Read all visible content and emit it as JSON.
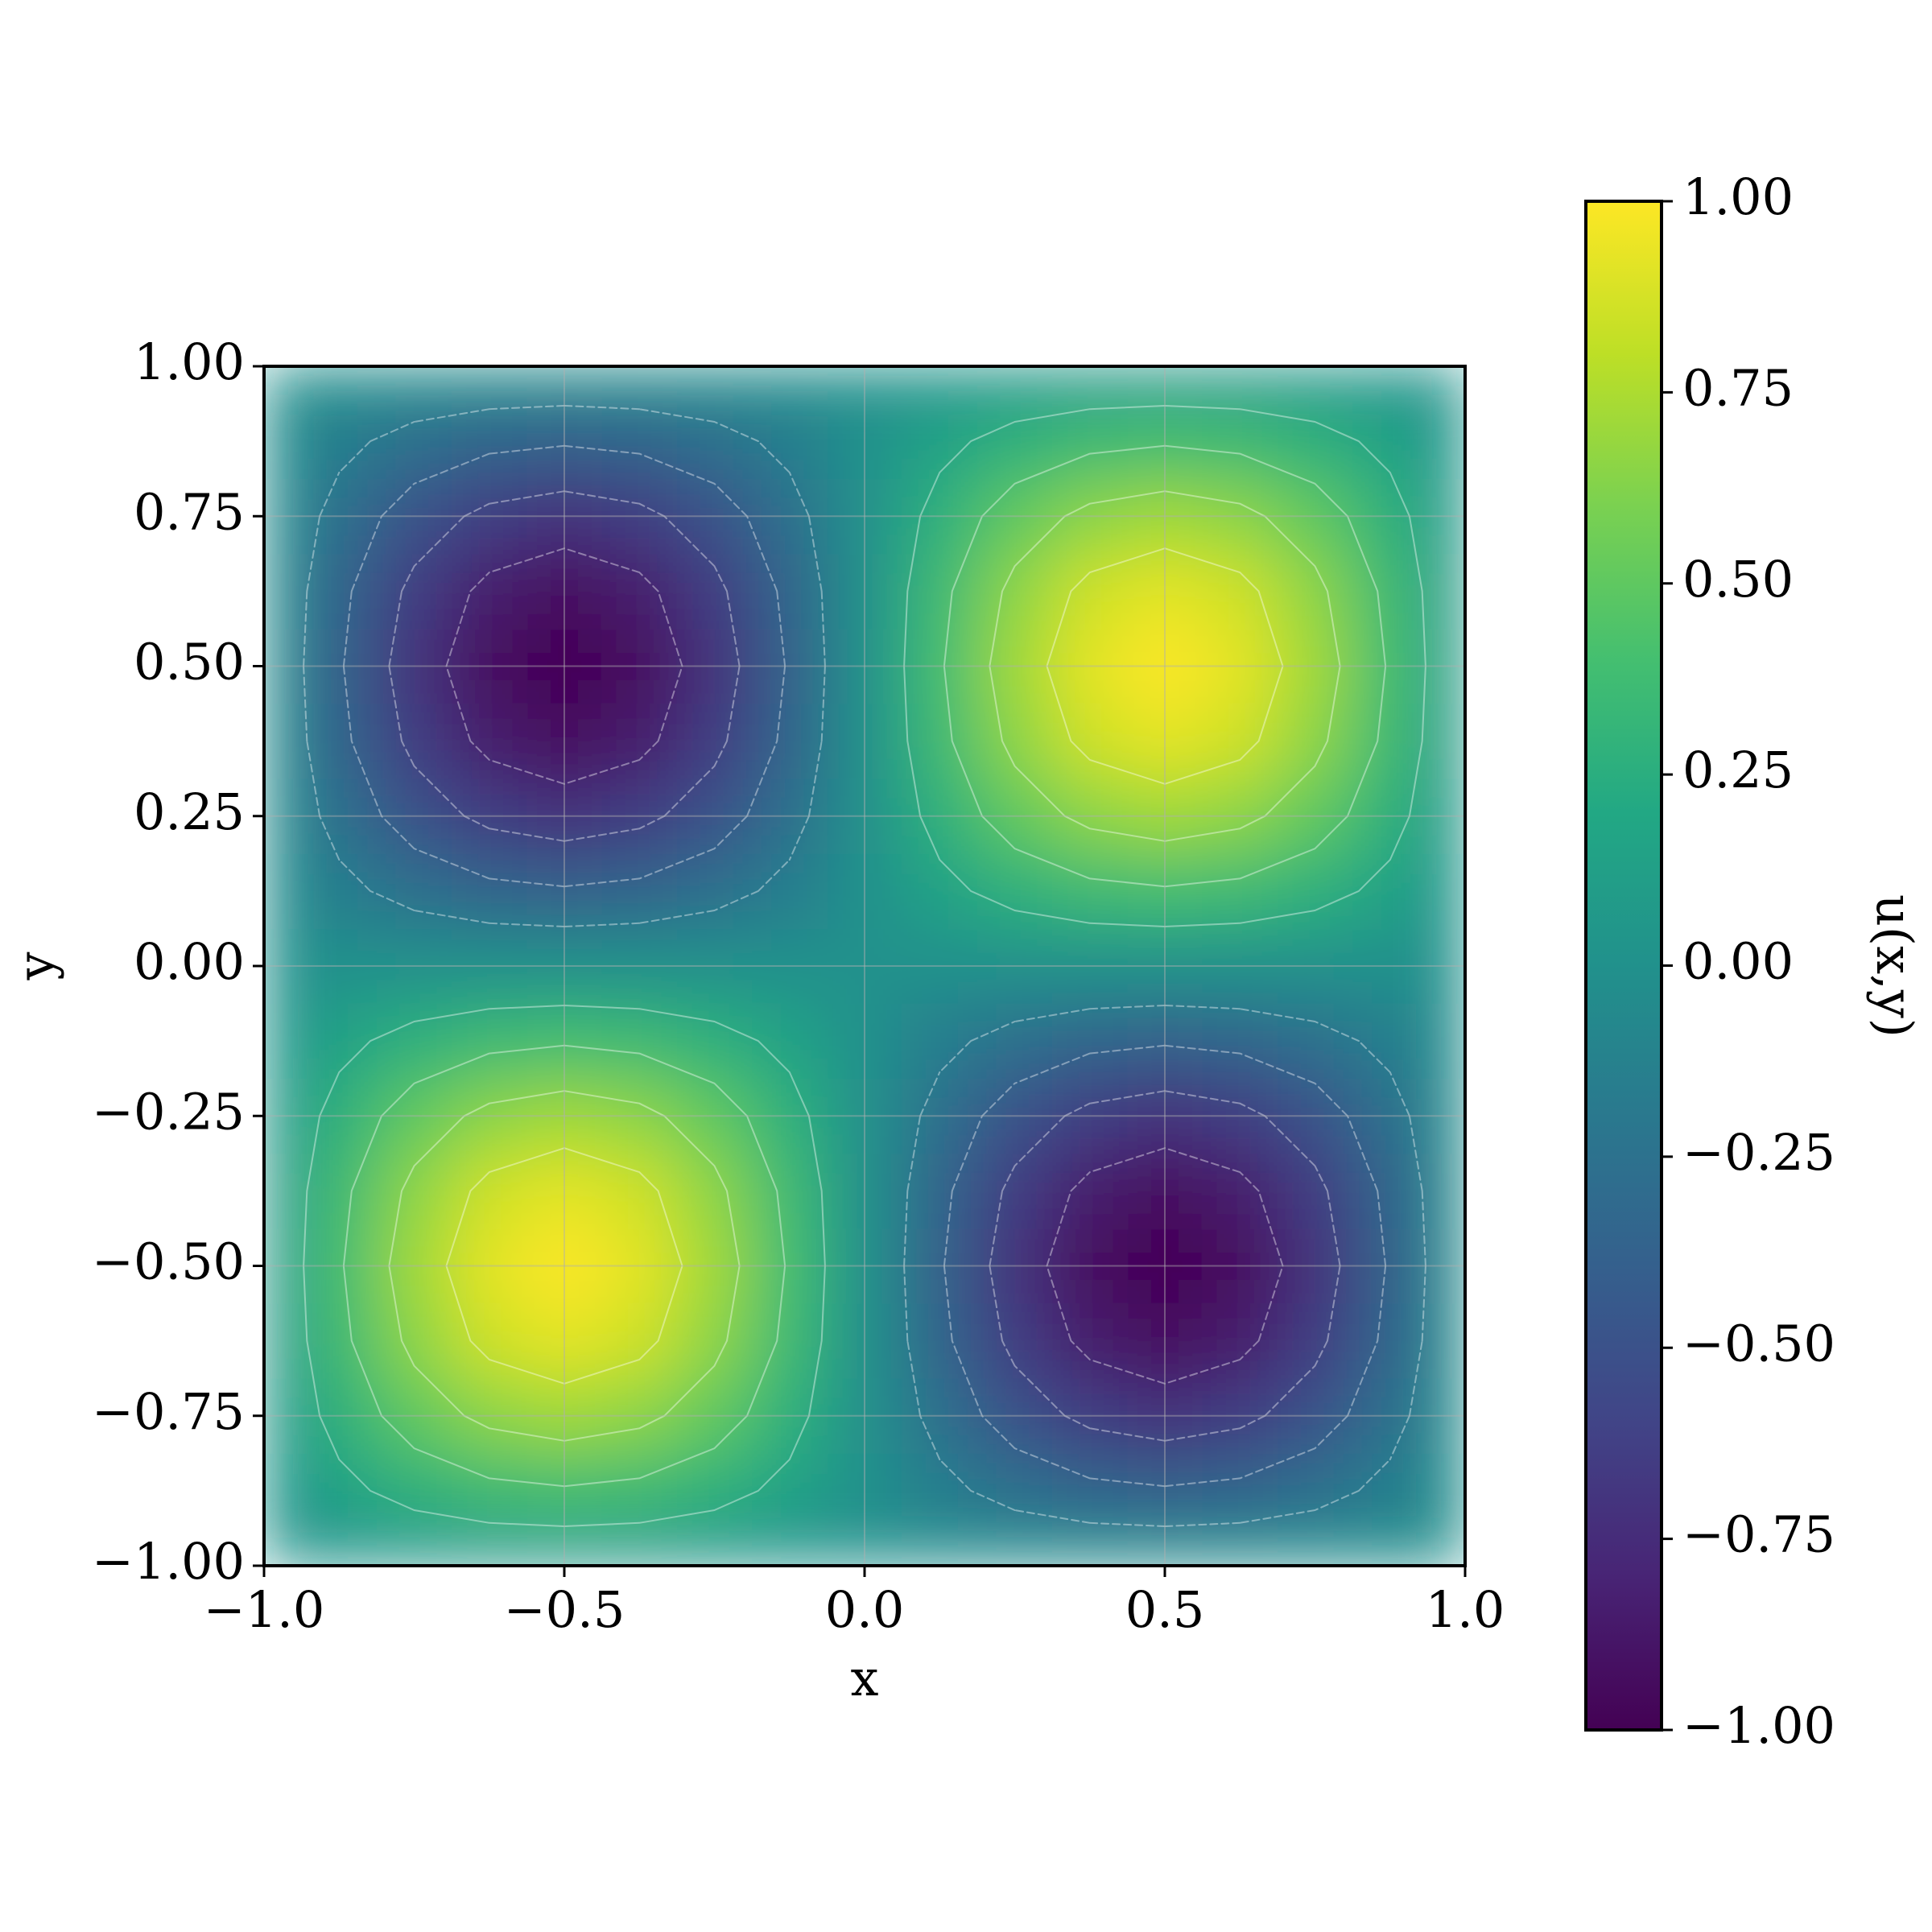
{
  "chart_data": {
    "type": "heatmap",
    "xlabel": "x",
    "ylabel": "y",
    "colorbar_label": "u(x,y)",
    "colormap": "viridis",
    "x": [
      -1,
      -0.875,
      -0.75,
      -0.625,
      -0.5,
      -0.375,
      -0.25,
      -0.125,
      0,
      0.125,
      0.25,
      0.375,
      0.5,
      0.625,
      0.75,
      0.875,
      1
    ],
    "y": [
      -1,
      -0.875,
      -0.75,
      -0.625,
      -0.5,
      -0.375,
      -0.25,
      -0.125,
      0,
      0.125,
      0.25,
      0.375,
      0.5,
      0.625,
      0.75,
      0.875,
      1
    ],
    "z": [
      [
        0,
        0,
        0,
        0,
        0,
        0,
        0,
        0,
        0,
        0,
        0,
        0,
        0,
        0,
        0,
        0,
        0
      ],
      [
        0,
        0.15,
        0.27,
        0.35,
        0.38,
        0.35,
        0.27,
        0.15,
        0,
        -0.15,
        -0.27,
        -0.35,
        -0.38,
        -0.35,
        -0.27,
        -0.15,
        0
      ],
      [
        0,
        0.27,
        0.5,
        0.65,
        0.71,
        0.65,
        0.5,
        0.27,
        0,
        -0.27,
        -0.5,
        -0.65,
        -0.71,
        -0.65,
        -0.5,
        -0.27,
        0
      ],
      [
        0,
        0.35,
        0.65,
        0.85,
        0.92,
        0.85,
        0.65,
        0.35,
        0,
        -0.35,
        -0.65,
        -0.85,
        -0.92,
        -0.85,
        -0.65,
        -0.35,
        0
      ],
      [
        0,
        0.38,
        0.71,
        0.92,
        1,
        0.92,
        0.71,
        0.38,
        0,
        -0.38,
        -0.71,
        -0.92,
        -1,
        -0.92,
        -0.71,
        -0.38,
        0
      ],
      [
        0,
        0.35,
        0.65,
        0.85,
        0.92,
        0.85,
        0.65,
        0.35,
        0,
        -0.35,
        -0.65,
        -0.85,
        -0.92,
        -0.85,
        -0.65,
        -0.35,
        0
      ],
      [
        0,
        0.27,
        0.5,
        0.65,
        0.71,
        0.65,
        0.5,
        0.27,
        0,
        -0.27,
        -0.5,
        -0.65,
        -0.71,
        -0.65,
        -0.5,
        -0.27,
        0
      ],
      [
        0,
        0.15,
        0.27,
        0.35,
        0.38,
        0.35,
        0.27,
        0.15,
        0,
        -0.15,
        -0.27,
        -0.35,
        -0.38,
        -0.35,
        -0.27,
        -0.15,
        0
      ],
      [
        0,
        0,
        0,
        0,
        0,
        0,
        0,
        0,
        0,
        0,
        0,
        0,
        0,
        0,
        0,
        0,
        0
      ],
      [
        0,
        -0.15,
        -0.27,
        -0.35,
        -0.38,
        -0.35,
        -0.27,
        -0.15,
        0,
        0.15,
        0.27,
        0.35,
        0.38,
        0.35,
        0.27,
        0.15,
        0
      ],
      [
        0,
        -0.27,
        -0.5,
        -0.65,
        -0.71,
        -0.65,
        -0.5,
        -0.27,
        0,
        0.27,
        0.5,
        0.65,
        0.71,
        0.65,
        0.5,
        0.27,
        0
      ],
      [
        0,
        -0.35,
        -0.65,
        -0.85,
        -0.92,
        -0.85,
        -0.65,
        -0.35,
        0,
        0.35,
        0.65,
        0.85,
        0.92,
        0.85,
        0.65,
        0.35,
        0
      ],
      [
        0,
        -0.38,
        -0.71,
        -0.92,
        -1,
        -0.92,
        -0.71,
        -0.38,
        0,
        0.38,
        0.71,
        0.92,
        1,
        0.92,
        0.71,
        0.38,
        0
      ],
      [
        0,
        -0.35,
        -0.65,
        -0.85,
        -0.92,
        -0.85,
        -0.65,
        -0.35,
        0,
        0.35,
        0.65,
        0.85,
        0.92,
        0.85,
        0.65,
        0.35,
        0
      ],
      [
        0,
        -0.27,
        -0.5,
        -0.65,
        -0.71,
        -0.65,
        -0.5,
        -0.27,
        0,
        0.27,
        0.5,
        0.65,
        0.71,
        0.65,
        0.5,
        0.27,
        0
      ],
      [
        0,
        -0.15,
        -0.27,
        -0.35,
        -0.38,
        -0.35,
        -0.27,
        -0.15,
        0,
        0.15,
        0.27,
        0.35,
        0.38,
        0.35,
        0.27,
        0.15,
        0
      ],
      [
        0,
        0,
        0,
        0,
        0,
        0,
        0,
        0,
        0,
        0,
        0,
        0,
        0,
        0,
        0,
        0,
        0
      ]
    ],
    "contour_levels": [
      -0.8,
      -0.6,
      -0.4,
      -0.2,
      0.2,
      0.4,
      0.6,
      0.8
    ],
    "xlim": [
      -1,
      1
    ],
    "ylim": [
      -1,
      1
    ],
    "clim": [
      -1,
      1
    ],
    "xticks": [
      {
        "value": -1,
        "label": "−1.0"
      },
      {
        "value": -0.5,
        "label": "−0.5"
      },
      {
        "value": 0,
        "label": "0.0"
      },
      {
        "value": 0.5,
        "label": "0.5"
      },
      {
        "value": 1,
        "label": "1.0"
      }
    ],
    "yticks": [
      {
        "value": -1,
        "label": "−1.00"
      },
      {
        "value": -0.75,
        "label": "−0.75"
      },
      {
        "value": -0.5,
        "label": "−0.50"
      },
      {
        "value": -0.25,
        "label": "−0.25"
      },
      {
        "value": 0,
        "label": "0.00"
      },
      {
        "value": 0.25,
        "label": "0.25"
      },
      {
        "value": 0.5,
        "label": "0.50"
      },
      {
        "value": 0.75,
        "label": "0.75"
      },
      {
        "value": 1,
        "label": "1.00"
      }
    ],
    "cticks": [
      {
        "value": -1,
        "label": "−1.00"
      },
      {
        "value": -0.75,
        "label": "−0.75"
      },
      {
        "value": -0.5,
        "label": "−0.50"
      },
      {
        "value": -0.25,
        "label": "−0.25"
      },
      {
        "value": 0,
        "label": "0.00"
      },
      {
        "value": 0.25,
        "label": "0.25"
      },
      {
        "value": 0.5,
        "label": "0.50"
      },
      {
        "value": 0.75,
        "label": "0.75"
      },
      {
        "value": 1,
        "label": "1.00"
      }
    ],
    "grid": true
  }
}
